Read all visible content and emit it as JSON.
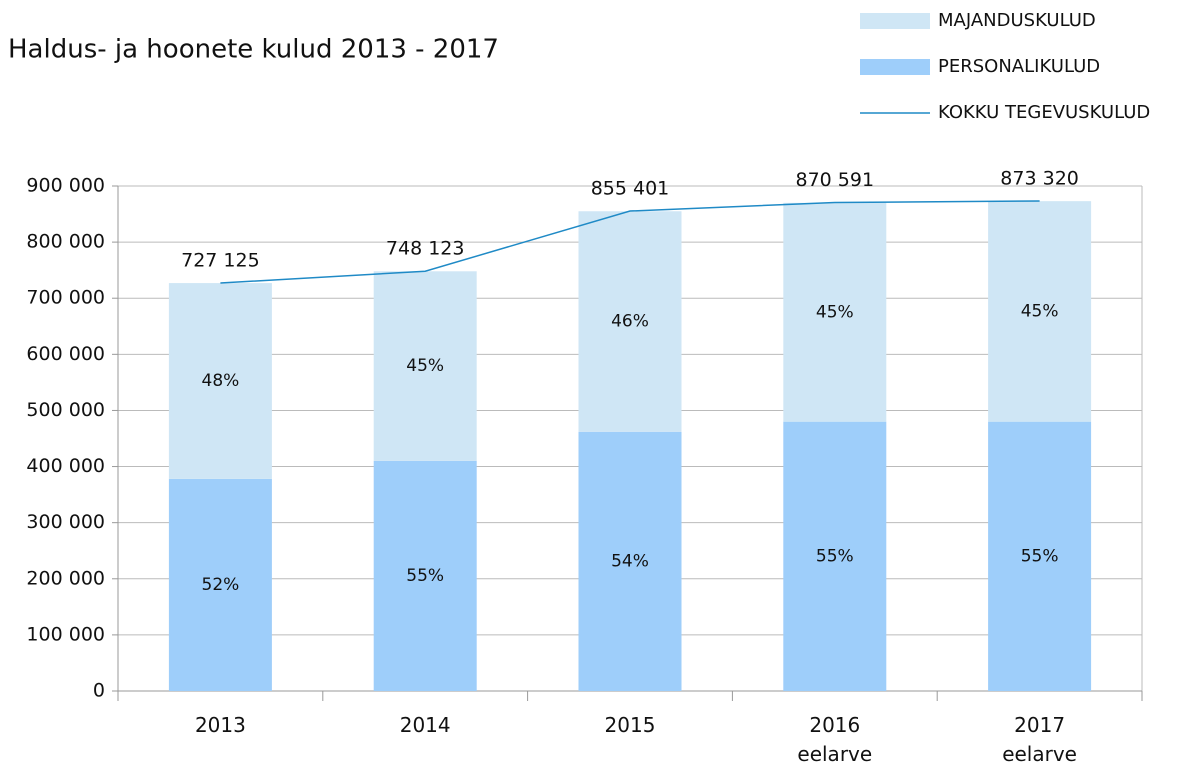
{
  "chart_data": {
    "type": "stacked-bar-line",
    "title": "Haldus- ja hoonete kulud 2013 - 2017",
    "categories": [
      "2013",
      "2014",
      "2015",
      "2016\neelarve",
      "2017\neelarve"
    ],
    "series": [
      {
        "name": "PERSONALIKULUD",
        "color": "#9ecefa",
        "values": [
          378000,
          410000,
          462000,
          480000,
          480000
        ],
        "percent_labels": [
          "52%",
          "55%",
          "54%",
          "55%",
          "55%"
        ]
      },
      {
        "name": "MAJANDUSKULUD",
        "color": "#cfe6f5",
        "values": [
          349000,
          338000,
          393000,
          390000,
          393000
        ],
        "percent_labels": [
          "48%",
          "45%",
          "46%",
          "45%",
          "45%"
        ]
      },
      {
        "name": "KOKKU TEGEVUSKULUD",
        "color": "#1f8ac6",
        "kind": "line",
        "values": [
          727125,
          748123,
          855401,
          870591,
          873320
        ],
        "value_labels": [
          "727 125",
          "748 123",
          "855 401",
          "870 591",
          "873 320"
        ]
      }
    ],
    "legend_order": [
      1,
      0,
      2
    ],
    "ylim": [
      0,
      900000
    ],
    "yticks": [
      0,
      {
        "value": 100000,
        "label": "100 000"
      },
      {
        "value": 200000,
        "label": "200 000"
      },
      {
        "value": 300000,
        "label": "300 000"
      },
      {
        "value": 400000,
        "label": "400 000"
      },
      {
        "value": 500000,
        "label": "500 000"
      },
      {
        "value": 600000,
        "label": "600 000"
      },
      {
        "value": 700000,
        "label": "700 000"
      },
      {
        "value": 800000,
        "label": "800 000"
      },
      {
        "value": 900000,
        "label": "900 000"
      }
    ],
    "grid": true
  }
}
